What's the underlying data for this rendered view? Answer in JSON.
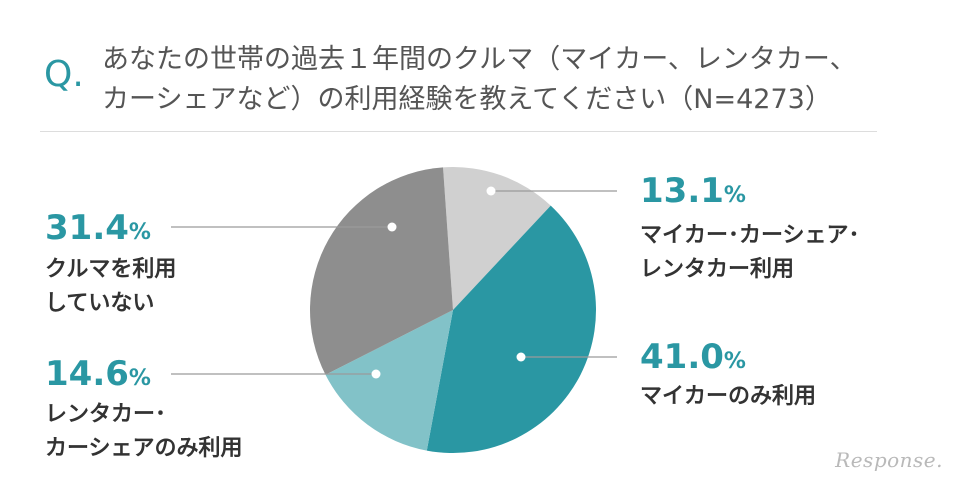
{
  "header": {
    "q_mark": "Q.",
    "title_line1": "あなたの世帯の過去１年間のクルマ（マイカー、レンタカー、",
    "title_line2": "カーシェアなど）の利用経験を教えてください（N=4273）"
  },
  "colors": {
    "accent": "#2a97a3",
    "slice_colors": [
      "#d0d0d0",
      "#2a97a3",
      "#82c2c8",
      "#8e8e8e"
    ]
  },
  "chart_data": {
    "type": "pie",
    "title": "あなたの世帯の過去１年間のクルマ（マイカー、レンタカー、カーシェアなど）の利用経験を教えてください（N=4273）",
    "slices": [
      {
        "label": "マイカー･カーシェア･レンタカー利用",
        "label_lines": [
          "マイカー･カーシェア･",
          "レンタカー利用"
        ],
        "value": 13.1,
        "value_text": "13.1",
        "unit": "%"
      },
      {
        "label": "マイカーのみ利用",
        "label_lines": [
          "マイカーのみ利用"
        ],
        "value": 41.0,
        "value_text": "41.0",
        "unit": "%"
      },
      {
        "label": "レンタカー･カーシェアのみ利用",
        "label_lines": [
          "レンタカー･",
          "カーシェアのみ利用"
        ],
        "value": 14.6,
        "value_text": "14.6",
        "unit": "%"
      },
      {
        "label": "クルマを利用していない",
        "label_lines": [
          "クルマを利用",
          "していない"
        ],
        "value": 31.4,
        "value_text": "31.4",
        "unit": "%"
      }
    ]
  },
  "logo": {
    "text": "Response."
  }
}
